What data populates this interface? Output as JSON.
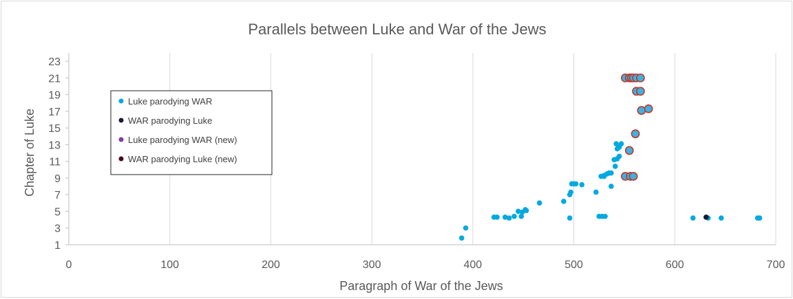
{
  "chart_data": {
    "type": "scatter",
    "title": "Parallels between Luke and War of the Jews",
    "xlabel": "Paragraph of War of the Jews",
    "ylabel": "Chapter of Luke",
    "xlim": [
      0,
      700
    ],
    "ylim": [
      1,
      24
    ],
    "x_ticks": [
      0,
      100,
      200,
      300,
      400,
      500,
      600,
      700
    ],
    "y_ticks": [
      1,
      3,
      5,
      7,
      9,
      11,
      13,
      15,
      17,
      19,
      21,
      23
    ],
    "grid": "vertical",
    "legend_position": "left",
    "series": [
      {
        "name": "Luke parodying WAR",
        "color": "#00a9e0",
        "points": [
          [
            389,
            1.8
          ],
          [
            393,
            3.0
          ],
          [
            421,
            4.3
          ],
          [
            424,
            4.3
          ],
          [
            432,
            4.3
          ],
          [
            436,
            4.2
          ],
          [
            441,
            4.4
          ],
          [
            445,
            5.0
          ],
          [
            448,
            4.4
          ],
          [
            449,
            4.9
          ],
          [
            452,
            5.2
          ],
          [
            453,
            5.1
          ],
          [
            466,
            6.0
          ],
          [
            490,
            6.2
          ],
          [
            496,
            7.0
          ],
          [
            496,
            4.2
          ],
          [
            497,
            7.3
          ],
          [
            498,
            8.3
          ],
          [
            500,
            8.3
          ],
          [
            502,
            8.3
          ],
          [
            508,
            8.2
          ],
          [
            522,
            7.3
          ],
          [
            525,
            4.4
          ],
          [
            527,
            9.2
          ],
          [
            528,
            4.4
          ],
          [
            530,
            9.3
          ],
          [
            530,
            9.2
          ],
          [
            531,
            4.4
          ],
          [
            533,
            9.5
          ],
          [
            535,
            9.6
          ],
          [
            537,
            9.6
          ],
          [
            537,
            8.0
          ],
          [
            540,
            11.2
          ],
          [
            541,
            10.4
          ],
          [
            542,
            13.1
          ],
          [
            543,
            11.3
          ],
          [
            543,
            12.5
          ],
          [
            545,
            12.7
          ],
          [
            545,
            11.6
          ],
          [
            547,
            13.1
          ],
          [
            618,
            4.2
          ],
          [
            633,
            4.2
          ],
          [
            646,
            4.2
          ],
          [
            682,
            4.2
          ],
          [
            684,
            4.2
          ]
        ]
      },
      {
        "name": "WAR parodying Luke",
        "color": "#1a1a3a",
        "points": [
          [
            631,
            4.3
          ]
        ]
      },
      {
        "name": "Luke parodying WAR (new)",
        "color": "#7f3f98",
        "points": []
      },
      {
        "name": "WAR parodying Luke (new)",
        "color": "#4a0020",
        "points": [
          [
            551,
            21.0
          ],
          [
            555,
            21.0
          ],
          [
            557,
            21.0
          ],
          [
            559,
            21.0
          ],
          [
            562,
            21.0
          ],
          [
            566,
            21.0
          ],
          [
            562,
            19.4
          ],
          [
            566,
            19.4
          ],
          [
            567,
            17.1
          ],
          [
            574,
            17.3
          ],
          [
            561,
            14.3
          ],
          [
            555,
            12.3
          ],
          [
            551,
            9.2
          ],
          [
            556,
            9.2
          ],
          [
            559,
            9.2
          ]
        ],
        "fill": "#3db1e0",
        "stroke": "#c0392b"
      }
    ]
  }
}
